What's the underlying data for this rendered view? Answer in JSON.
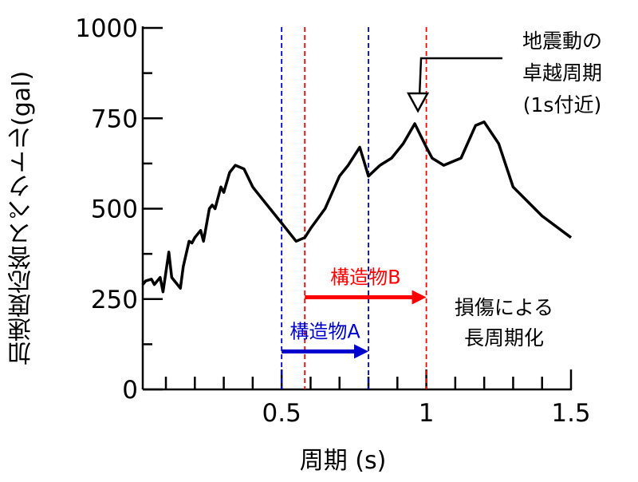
{
  "chart_data": {
    "type": "line",
    "xlabel": "周期 (s)",
    "ylabel": "加速度応答スペクトル(gal)",
    "xlim": [
      0.02,
      1.5
    ],
    "ylim": [
      0,
      1000
    ],
    "xticks": [
      0.5,
      1,
      1.5
    ],
    "xtick_labels": [
      "0.5",
      "1",
      "1.5"
    ],
    "yticks": [
      0,
      250,
      500,
      750,
      1000
    ],
    "ytick_labels": [
      "0",
      "250",
      "500",
      "750",
      "1000"
    ],
    "grid": false,
    "series": [
      {
        "x": [
          0.02,
          0.03,
          0.05,
          0.06,
          0.08,
          0.09,
          0.11,
          0.12,
          0.13,
          0.15,
          0.16,
          0.18,
          0.19,
          0.2,
          0.22,
          0.23,
          0.25,
          0.26,
          0.27,
          0.29,
          0.3,
          0.32,
          0.34,
          0.37,
          0.4,
          0.42,
          0.45,
          0.5,
          0.55,
          0.58,
          0.6,
          0.65,
          0.7,
          0.73,
          0.77,
          0.8,
          0.84,
          0.88,
          0.92,
          0.96,
          1.0,
          1.02,
          1.06,
          1.12,
          1.17,
          1.2,
          1.25,
          1.3,
          1.4,
          1.5
        ],
        "values": [
          290,
          300,
          305,
          290,
          310,
          270,
          380,
          310,
          300,
          280,
          340,
          410,
          405,
          420,
          440,
          410,
          500,
          510,
          500,
          560,
          545,
          600,
          620,
          610,
          560,
          540,
          510,
          460,
          410,
          420,
          445,
          500,
          590,
          620,
          670,
          590,
          620,
          640,
          680,
          735,
          670,
          640,
          620,
          640,
          730,
          740,
          680,
          560,
          480,
          420
        ]
      }
    ],
    "reference_lines": [
      {
        "x": 0.5,
        "color": "#0000cc"
      },
      {
        "x": 0.58,
        "color": "#ff0000"
      },
      {
        "x": 0.8,
        "color": "#0000cc"
      },
      {
        "x": 1.0,
        "color": "#ff0000"
      }
    ],
    "range_arrows": [
      {
        "label": "構造物B",
        "x_start": 0.58,
        "x_end": 1.0,
        "y": 255,
        "color": "#ff0000"
      },
      {
        "label": "構造物A",
        "x_start": 0.5,
        "x_end": 0.8,
        "y": 105,
        "color": "#0000cc"
      }
    ],
    "annotations": [
      {
        "lines": [
          "地震動の",
          "卓越周期",
          "(1s付近)"
        ],
        "pointer_x": 0.96,
        "pointer_y": 735
      },
      {
        "lines": [
          "損傷による",
          "長周期化"
        ]
      }
    ]
  }
}
